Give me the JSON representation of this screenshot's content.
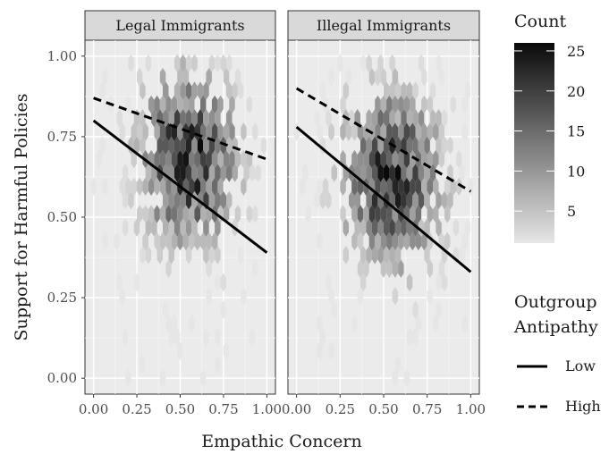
{
  "chart_data": {
    "type": "hexbin",
    "xlabel": "Empathic Concern",
    "ylabel": "Support for Harmful Policies",
    "xlim": [
      0,
      1
    ],
    "ylim": [
      0,
      1
    ],
    "x_ticks": [
      "0.00",
      "0.25",
      "0.50",
      "0.75",
      "1.00"
    ],
    "y_ticks": [
      "0.00",
      "0.25",
      "0.50",
      "0.75",
      "1.00"
    ],
    "x_tick_values": [
      0,
      0.25,
      0.5,
      0.75,
      1
    ],
    "y_tick_values": [
      0,
      0.25,
      0.5,
      0.75,
      1
    ],
    "grid": true,
    "facets": [
      {
        "title": "Legal Immigrants",
        "lines": [
          {
            "name": "Low",
            "style": "solid",
            "x": [
              0,
              1
            ],
            "y": [
              0.8,
              0.39
            ]
          },
          {
            "name": "High",
            "style": "dashed",
            "x": [
              0,
              1
            ],
            "y": [
              0.87,
              0.68
            ]
          }
        ],
        "density_center": [
          0.55,
          0.68
        ]
      },
      {
        "title": "Illegal Immigrants",
        "lines": [
          {
            "name": "Low",
            "style": "solid",
            "x": [
              0,
              1
            ],
            "y": [
              0.78,
              0.33
            ]
          },
          {
            "name": "High",
            "style": "dashed",
            "x": [
              0,
              1
            ],
            "y": [
              0.9,
              0.58
            ]
          }
        ],
        "density_center": [
          0.55,
          0.62
        ]
      }
    ],
    "colorbar": {
      "title": "Count",
      "ticks": [
        "5",
        "10",
        "15",
        "20",
        "25"
      ],
      "tick_values": [
        5,
        10,
        15,
        20,
        25
      ],
      "range": [
        1,
        26
      ],
      "color_low": "#e6e6e6",
      "color_high": "#0a0a0a"
    },
    "line_legend": {
      "title_line1": "Outgroup",
      "title_line2": "Antipathy",
      "entries": [
        {
          "label": "Low",
          "style": "solid"
        },
        {
          "label": "High",
          "style": "dashed"
        }
      ]
    },
    "panel_background": "#ebebeb",
    "strip_background": "#d9d9d9"
  }
}
